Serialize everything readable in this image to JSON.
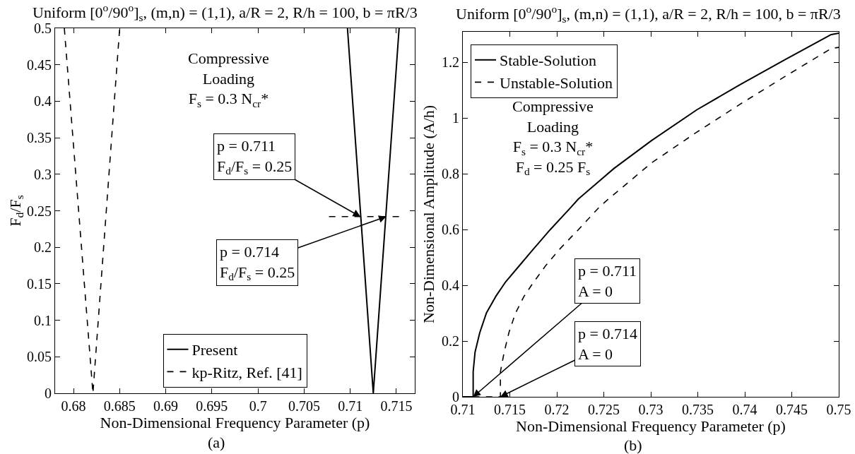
{
  "chart_data": [
    {
      "type": "line",
      "title": "Uniform [0$^{o}$/90$^{o}$]$_{s}$, (m,n) = (1,1), a/R = 2, R/h = 100, b = πR/3",
      "xlabel": "Non-Dimensional Frequency Parameter (p)",
      "ylabel": "F$_{d}$/F$_{s}$",
      "xlim": [
        0.678,
        0.717
      ],
      "xticks": [
        0.68,
        0.685,
        0.69,
        0.695,
        0.7,
        0.705,
        0.71,
        0.715
      ],
      "ylim": [
        0,
        0.5
      ],
      "yticks": [
        0,
        0.05,
        0.1,
        0.15,
        0.2,
        0.25,
        0.3,
        0.35,
        0.4,
        0.45,
        0.5
      ],
      "legend": "bottom",
      "series": [
        {
          "name": "Present",
          "color": "#000000",
          "line_style": "solid",
          "x": [
            0.7097,
            0.7125,
            0.7153
          ],
          "values": [
            0.5,
            0,
            0.5
          ]
        },
        {
          "name": "kp-Ritz, Ref. [41]",
          "color": "#000000",
          "line_style": "dashed",
          "x": [
            0.679,
            0.6821,
            0.685
          ],
          "values": [
            0.5,
            0,
            0.5
          ]
        },
        {
          "color": "#000000",
          "line_style": "dashed",
          "x": [
            0.7077,
            0.7155
          ],
          "values": [
            0.242,
            0.242
          ]
        }
      ],
      "annotations": [
        "Compressive\nLoading\nF$_{s}$ = 0.3 N$_{cr}$*",
        {
          "text": "p = 0.711\nF$_{d}$/F$_{s}$ = 0.25",
          "x": 0.7111,
          "y": 0.242
        },
        {
          "text": "p = 0.714\nF$_{d}$/F$_{s}$ = 0.25",
          "x": 0.7139,
          "y": 0.242
        },
        "(a)"
      ]
    },
    {
      "type": "line",
      "title": "Uniform [0$^{o}$/90$^{o}$]$_{s}$, (m,n) = (1,1), a/R = 2, R/h = 100, b = πR/3",
      "xlabel": "Non-Dimensional Frequency Parameter (p)",
      "ylabel": "Non-Dimensional Amplitude (A/h)",
      "xlim": [
        0.71,
        0.75
      ],
      "xticks": [
        0.71,
        0.715,
        0.72,
        0.725,
        0.73,
        0.735,
        0.74,
        0.745,
        0.75
      ],
      "ylim": [
        0,
        1.31
      ],
      "yticks": [
        0,
        0.2,
        0.4,
        0.6,
        0.8,
        1,
        1.2
      ],
      "legend": "top left",
      "series": [
        {
          "name": "Stable-Solution",
          "color": "#000000",
          "line_style": "solid",
          "x": [
            0.71,
            0.7111,
            0.7111,
            0.7111,
            0.7113,
            0.7118,
            0.7125,
            0.7135,
            0.7145,
            0.716,
            0.7175,
            0.7193,
            0.7215,
            0.7223,
            0.7261,
            0.7301,
            0.7349,
            0.7395,
            0.7443,
            0.7492,
            0.75
          ],
          "values": [
            0,
            0,
            0.02,
            0.09,
            0.16,
            0.23,
            0.3,
            0.36,
            0.41,
            0.47,
            0.53,
            0.6,
            0.68,
            0.71,
            0.82,
            0.92,
            1.03,
            1.12,
            1.21,
            1.3,
            1.305
          ]
        },
        {
          "name": "Unstable-Solution",
          "color": "#000000",
          "line_style": "dashed",
          "x": [
            0.7111,
            0.714,
            0.714,
            0.714,
            0.7144,
            0.7149,
            0.7156,
            0.7165,
            0.7175,
            0.7188,
            0.7203,
            0.7223,
            0.7245,
            0.7255,
            0.7301,
            0.7349,
            0.7395,
            0.7443,
            0.7492,
            0.75
          ],
          "values": [
            0,
            0,
            0.02,
            0.09,
            0.16,
            0.23,
            0.3,
            0.36,
            0.41,
            0.47,
            0.53,
            0.6,
            0.68,
            0.71,
            0.84,
            0.95,
            1.05,
            1.15,
            1.25,
            1.254
          ]
        }
      ],
      "annotations": [
        "Compressive\nLoading\nF$_{s}$ = 0.3 N$_{cr}$*\nF$_{d}$ = 0.25 F$_{s}$",
        {
          "text": "p = 0.711\nA = 0",
          "x": 0.7111,
          "y": 0
        },
        {
          "text": "p = 0.714\nA = 0",
          "x": 0.714,
          "y": 0
        },
        "(b)"
      ]
    }
  ]
}
